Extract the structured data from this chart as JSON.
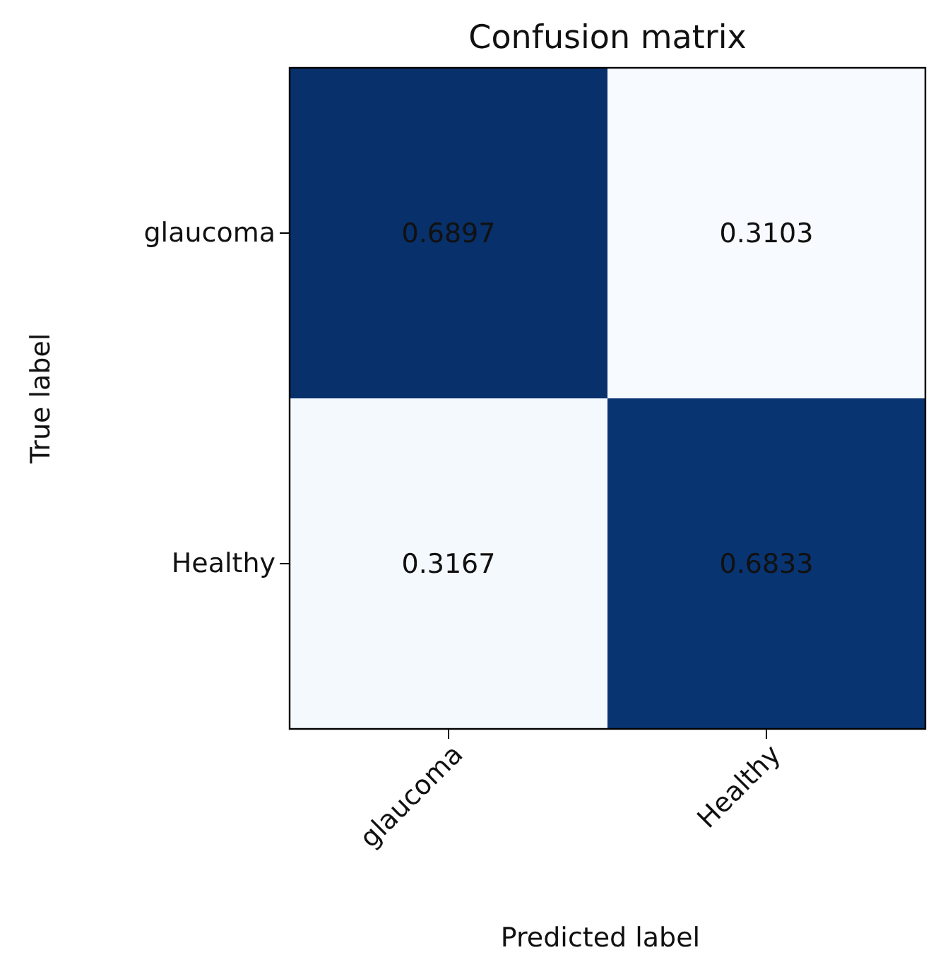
{
  "chart_data": {
    "type": "heatmap",
    "title": "Confusion matrix",
    "xlabel": "Predicted label",
    "ylabel": "True label",
    "categories": [
      "glaucoma",
      "Healthy"
    ],
    "y_categories": [
      "glaucoma",
      "Healthy"
    ],
    "cells": [
      [
        0.6897,
        0.3103
      ],
      [
        0.3167,
        0.6833
      ]
    ],
    "data_labels": true
  }
}
